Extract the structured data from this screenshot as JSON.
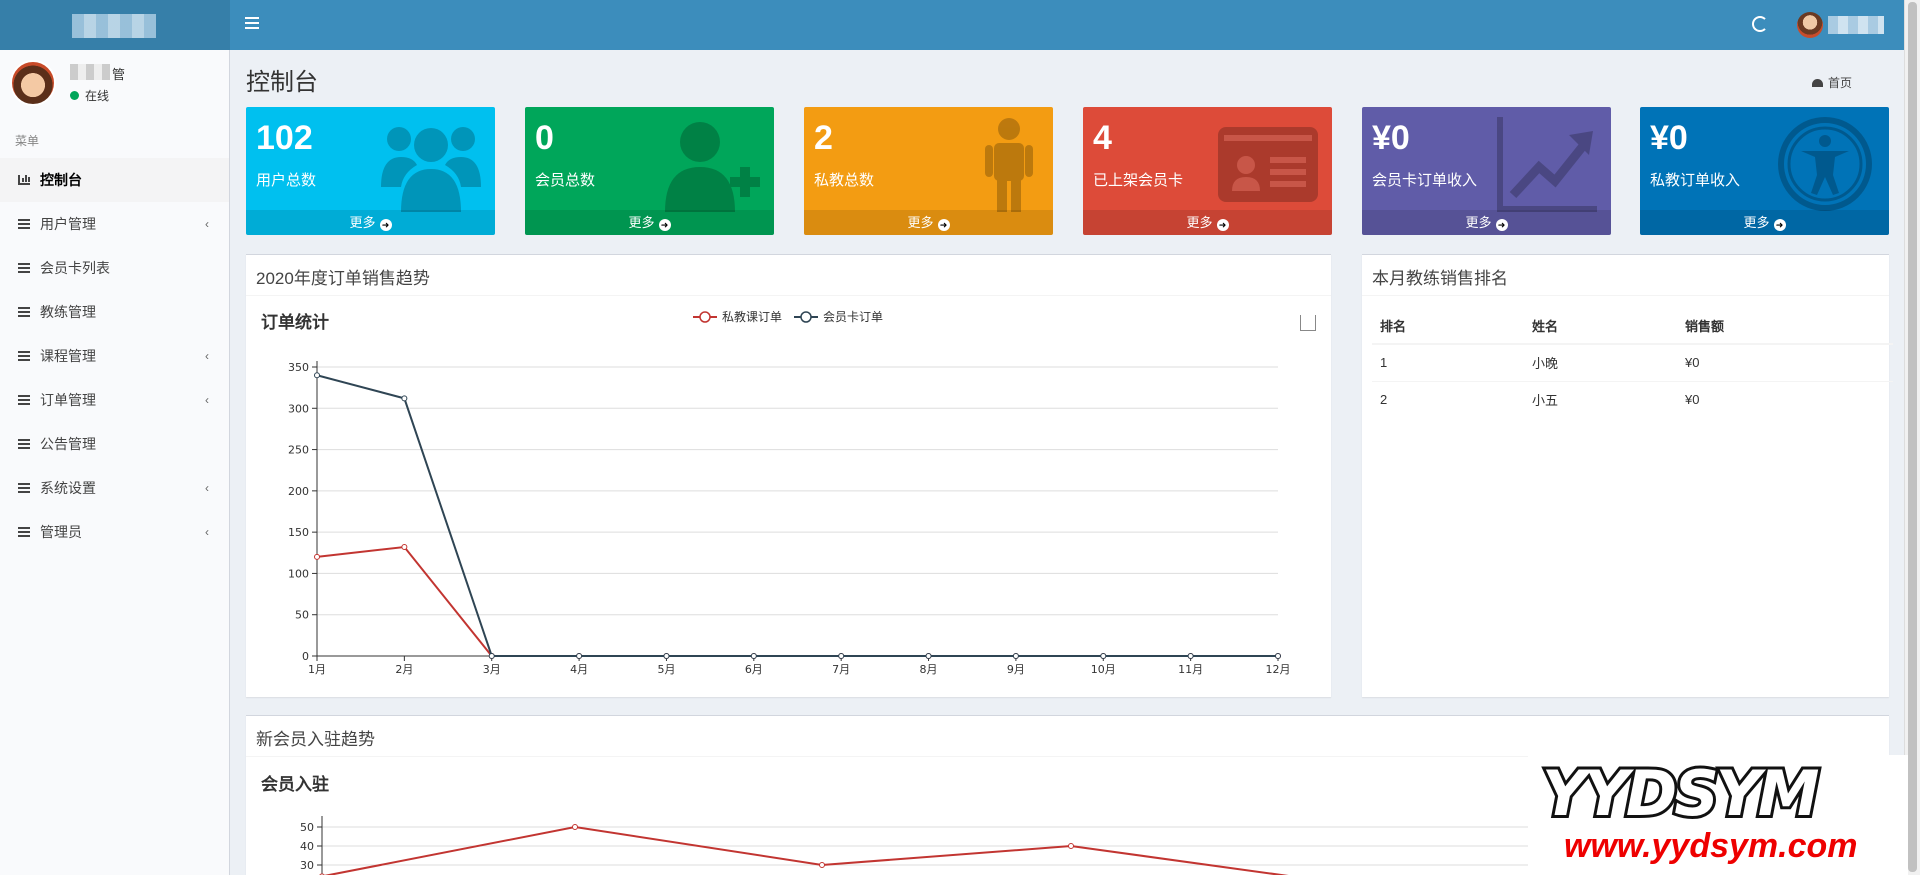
{
  "header": {
    "menu_toggle": "menu-toggle",
    "refresh": "refresh",
    "user": ""
  },
  "sidebar": {
    "user_name": "管",
    "status": "在线",
    "menu_header": "菜单",
    "items": [
      {
        "label": "控制台",
        "has_children": false
      },
      {
        "label": "用户管理",
        "has_children": true
      },
      {
        "label": "会员卡列表",
        "has_children": false
      },
      {
        "label": "教练管理",
        "has_children": false
      },
      {
        "label": "课程管理",
        "has_children": true
      },
      {
        "label": "订单管理",
        "has_children": true
      },
      {
        "label": "公告管理",
        "has_children": false
      },
      {
        "label": "系统设置",
        "has_children": true
      },
      {
        "label": "管理员",
        "has_children": true
      }
    ]
  },
  "page": {
    "title": "控制台",
    "breadcrumb": "首页"
  },
  "stats": [
    {
      "value": "102",
      "label": "用户总数",
      "more": "更多",
      "color": "#00c0ef",
      "icon": "users-icon"
    },
    {
      "value": "0",
      "label": "会员总数",
      "more": "更多",
      "color": "#00a65a",
      "icon": "user-plus-icon"
    },
    {
      "value": "2",
      "label": "私教总数",
      "more": "更多",
      "color": "#f39c12",
      "icon": "male-icon"
    },
    {
      "value": "4",
      "label": "已上架会员卡",
      "more": "更多",
      "color": "#dd4b39",
      "icon": "id-card-icon"
    },
    {
      "value": "¥0",
      "label": "会员卡订单收入",
      "more": "更多",
      "color": "#605ca8",
      "icon": "line-chart-icon"
    },
    {
      "value": "¥0",
      "label": "私教订单收入",
      "more": "更多",
      "color": "#0073b7",
      "icon": "universal-access-icon"
    }
  ],
  "sales_box": {
    "title": "2020年度订单销售趋势",
    "inner_title": "订单统计"
  },
  "rank_box": {
    "title": "本月教练销售排名",
    "columns": [
      "排名",
      "姓名",
      "销售额"
    ],
    "rows": [
      [
        "1",
        "小晚",
        "¥0"
      ],
      [
        "2",
        "小五",
        "¥0"
      ]
    ]
  },
  "member_box": {
    "title": "新会员入驻趋势",
    "inner_title": "会员入驻"
  },
  "watermark": {
    "top": "YYDSYM",
    "bottom": "www.yydsym.com"
  },
  "chart_data": [
    {
      "type": "line",
      "title": "订单统计",
      "categories": [
        "1月",
        "2月",
        "3月",
        "4月",
        "5月",
        "6月",
        "7月",
        "8月",
        "9月",
        "10月",
        "11月",
        "12月"
      ],
      "series": [
        {
          "name": "私教课订单",
          "color": "#c23531",
          "values": [
            120,
            132,
            0,
            0,
            0,
            0,
            0,
            0,
            0,
            0,
            0,
            0
          ]
        },
        {
          "name": "会员卡订单",
          "color": "#2f4554",
          "values": [
            340,
            312,
            0,
            0,
            0,
            0,
            0,
            0,
            0,
            0,
            0,
            0
          ]
        }
      ],
      "ylim": [
        0,
        350
      ],
      "yticks": [
        0,
        50,
        100,
        150,
        200,
        250,
        300,
        350
      ],
      "grid": true,
      "legend": "top-center"
    },
    {
      "type": "line",
      "title": "会员入驻",
      "series": [
        {
          "values": [
            24,
            50,
            30,
            40,
            22
          ]
        }
      ],
      "yticks": [
        30,
        40,
        50
      ],
      "grid": true
    }
  ]
}
